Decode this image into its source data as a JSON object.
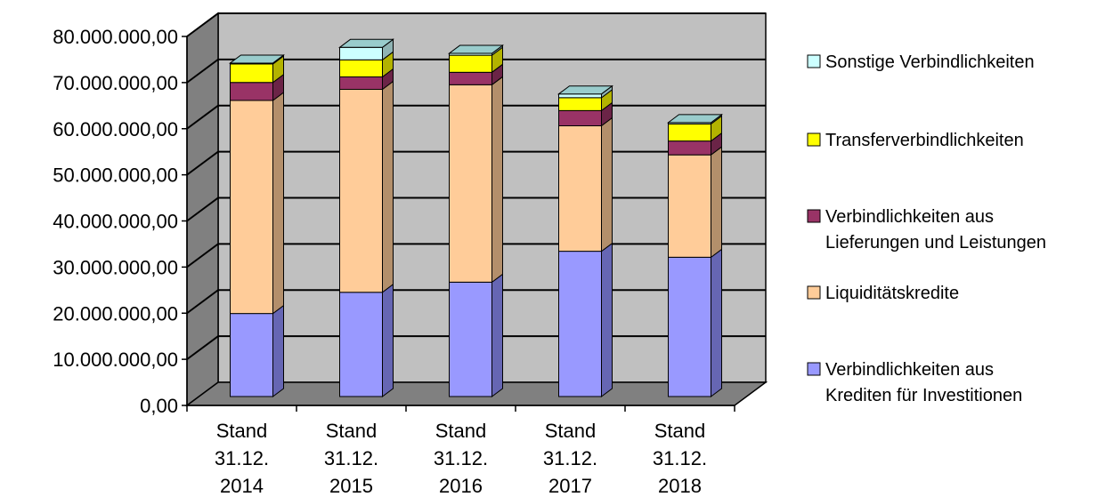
{
  "chart_data": {
    "type": "bar",
    "stacked": true,
    "three_d": true,
    "title": "",
    "xlabel": "",
    "ylabel": "",
    "ylim": [
      0,
      80000000
    ],
    "grid": true,
    "legend_position": "right",
    "yticks": [
      "0,00",
      "10.000.000,00",
      "20.000.000,00",
      "30.000.000,00",
      "40.000.000,00",
      "50.000.000,00",
      "60.000.000,00",
      "70.000.000,00",
      "80.000.000,00"
    ],
    "categories": [
      [
        "Stand",
        "31.12.",
        "2014"
      ],
      [
        "Stand",
        "31.12.",
        "2015"
      ],
      [
        "Stand",
        "31.12.",
        "2016"
      ],
      [
        "Stand",
        "31.12.",
        "2017"
      ],
      [
        "Stand",
        "31.12.",
        "2018"
      ]
    ],
    "series": [
      {
        "name": [
          "Verbindlichkeiten aus",
          "Krediten für Investitionen"
        ],
        "color": "#9999ff",
        "side": "#6666b3",
        "values": [
          18000000,
          22600000,
          24800000,
          31500000,
          30200000
        ]
      },
      {
        "name": [
          "Liquiditätskredite"
        ],
        "color": "#ffcc99",
        "side": "#b38f6b",
        "values": [
          46200000,
          44000000,
          42800000,
          27200000,
          22200000
        ]
      },
      {
        "name": [
          "Verbindlichkeiten aus",
          "Lieferungen und Leistungen"
        ],
        "color": "#993366",
        "side": "#6b2447",
        "values": [
          3900000,
          2700000,
          2700000,
          3300000,
          3000000
        ]
      },
      {
        "name": [
          "Transferverbindlichkeiten"
        ],
        "color": "#ffff00",
        "side": "#b3b300",
        "values": [
          4000000,
          3700000,
          3700000,
          2800000,
          3700000
        ]
      },
      {
        "name": [
          "Sonstige Verbindlichkeiten"
        ],
        "color": "#ccffff",
        "side": "#8fb3b3",
        "values": [
          200000,
          2700000,
          400000,
          800000,
          300000
        ]
      }
    ]
  }
}
